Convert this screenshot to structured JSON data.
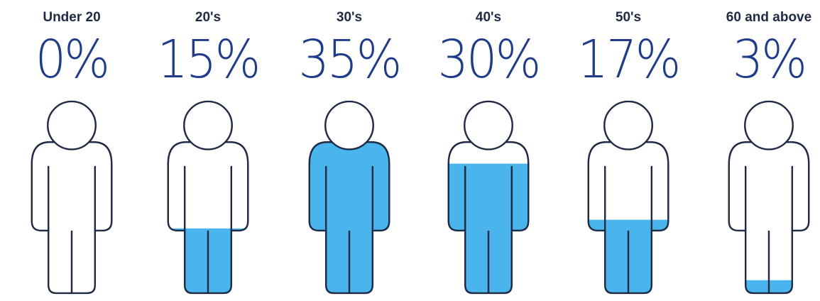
{
  "colors": {
    "fill": "#4ab4ec",
    "outline": "#1f2a44",
    "percent_text": "#1f3b8a",
    "label_text": "#1f2a44"
  },
  "icon": "person-icon",
  "chart_data": {
    "type": "bar",
    "categories": [
      "Under 20",
      "20's",
      "30's",
      "40's",
      "50's",
      "60 and above"
    ],
    "values": [
      0,
      15,
      35,
      30,
      17,
      3
    ],
    "value_labels": [
      "0%",
      "15%",
      "35%",
      "30%",
      "17%",
      "3%"
    ],
    "ylim": [
      0,
      35
    ],
    "grid": false,
    "legend": "none"
  }
}
